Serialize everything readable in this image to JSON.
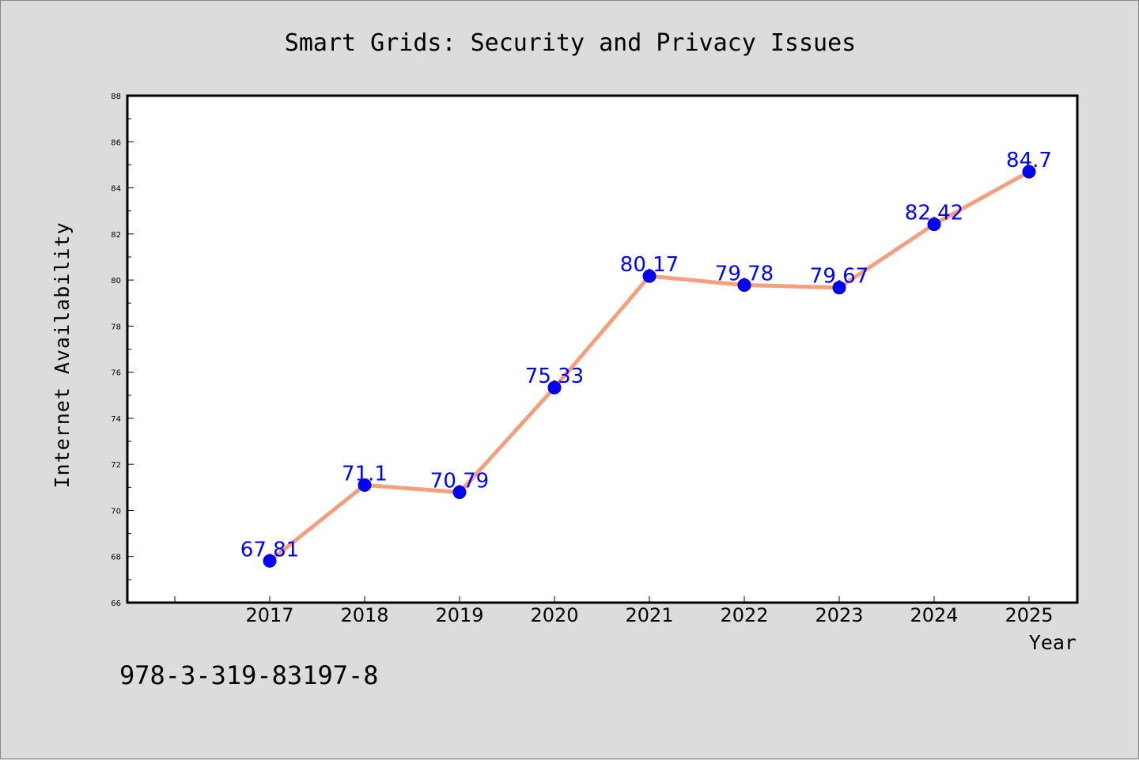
{
  "chart_data": {
    "type": "line",
    "title": "Smart Grids: Security and Privacy Issues",
    "xlabel": "Year",
    "ylabel": "Internet Availability",
    "categories": [
      "2017",
      "2018",
      "2019",
      "2020",
      "2021",
      "2022",
      "2023",
      "2024",
      "2025"
    ],
    "series": [
      {
        "values": [
          67.81,
          71.1,
          70.79,
          75.33,
          80.17,
          79.78,
          79.67,
          82.42,
          84.7
        ],
        "labels": [
          "67.81",
          "71.1",
          "70.79",
          "75.33",
          "80.17",
          "79.78",
          "79.67",
          "82.42",
          "84.7"
        ]
      }
    ],
    "ylim": [
      66,
      88
    ],
    "yticks": [
      66,
      68,
      70,
      72,
      74,
      76,
      78,
      80,
      82,
      84,
      86,
      88
    ],
    "grid": false,
    "legend": "none"
  },
  "colors": {
    "line": "#f4a07f",
    "marker": "#0000ff",
    "data_label": "#0000ff",
    "background": "#dcdcdc",
    "plot_background": "#ffffff"
  },
  "footer": {
    "text": "978-3-319-83197-8"
  }
}
